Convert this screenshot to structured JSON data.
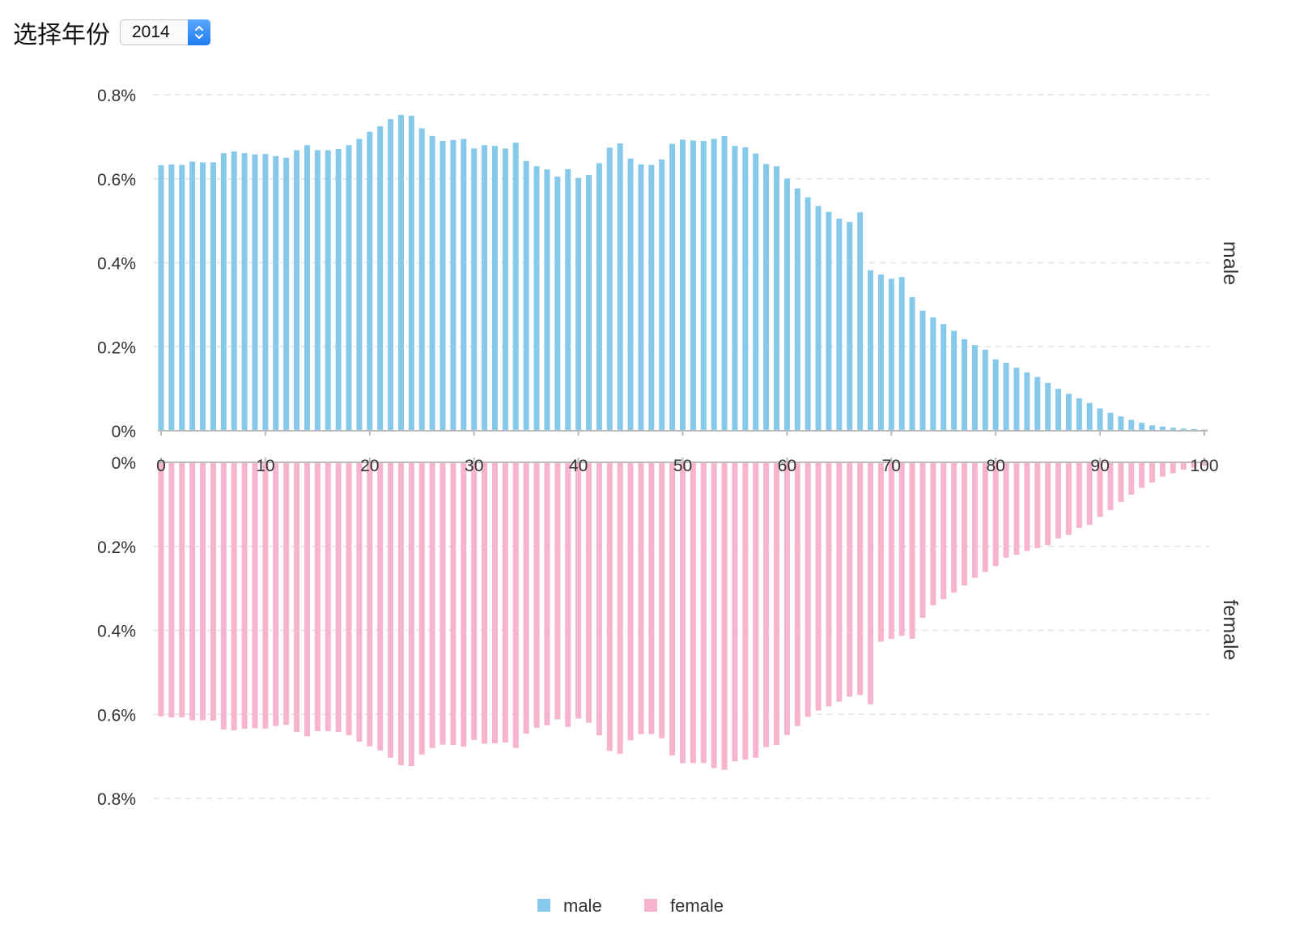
{
  "selector": {
    "label": "选择年份",
    "value": "2014"
  },
  "colors": {
    "male": "#87c9ea",
    "female": "#f6b4cf",
    "axis": "#bbbbbb",
    "grid": "#e3e3e3"
  },
  "chart_data": [
    {
      "type": "bar",
      "series_name": "male",
      "side_label": "male",
      "unit": "%",
      "x": [
        0,
        1,
        2,
        3,
        4,
        5,
        6,
        7,
        8,
        9,
        10,
        11,
        12,
        13,
        14,
        15,
        16,
        17,
        18,
        19,
        20,
        21,
        22,
        23,
        24,
        25,
        26,
        27,
        28,
        29,
        30,
        31,
        32,
        33,
        34,
        35,
        36,
        37,
        38,
        39,
        40,
        41,
        42,
        43,
        44,
        45,
        46,
        47,
        48,
        49,
        50,
        51,
        52,
        53,
        54,
        55,
        56,
        57,
        58,
        59,
        60,
        61,
        62,
        63,
        64,
        65,
        66,
        67,
        68,
        69,
        70,
        71,
        72,
        73,
        74,
        75,
        76,
        77,
        78,
        79,
        80,
        81,
        82,
        83,
        84,
        85,
        86,
        87,
        88,
        89,
        90,
        91,
        92,
        93,
        94,
        95,
        96,
        97,
        98,
        99,
        100
      ],
      "values": [
        0.632,
        0.634,
        0.633,
        0.641,
        0.639,
        0.639,
        0.661,
        0.665,
        0.661,
        0.658,
        0.659,
        0.654,
        0.65,
        0.668,
        0.68,
        0.668,
        0.668,
        0.671,
        0.68,
        0.695,
        0.712,
        0.725,
        0.742,
        0.752,
        0.75,
        0.72,
        0.702,
        0.69,
        0.692,
        0.695,
        0.672,
        0.68,
        0.678,
        0.672,
        0.686,
        0.642,
        0.63,
        0.622,
        0.605,
        0.623,
        0.602,
        0.609,
        0.637,
        0.674,
        0.684,
        0.648,
        0.634,
        0.633,
        0.646,
        0.683,
        0.693,
        0.691,
        0.69,
        0.695,
        0.702,
        0.678,
        0.675,
        0.66,
        0.635,
        0.63,
        0.6,
        0.577,
        0.556,
        0.535,
        0.521,
        0.505,
        0.497,
        0.52,
        0.382,
        0.372,
        0.362,
        0.366,
        0.318,
        0.286,
        0.27,
        0.254,
        0.238,
        0.218,
        0.204,
        0.193,
        0.17,
        0.162,
        0.15,
        0.139,
        0.128,
        0.114,
        0.1,
        0.088,
        0.077,
        0.066,
        0.053,
        0.043,
        0.034,
        0.026,
        0.019,
        0.013,
        0.01,
        0.007,
        0.005,
        0.004,
        0.003
      ],
      "ylim": [
        0,
        0.8
      ],
      "yticks": [
        "0%",
        "0.2%",
        "0.4%",
        "0.6%",
        "0.8%"
      ],
      "xticks": [
        "0",
        "10",
        "20",
        "30",
        "40",
        "50",
        "60",
        "70",
        "80",
        "90",
        "100"
      ]
    },
    {
      "type": "bar",
      "series_name": "female",
      "side_label": "female",
      "unit": "%",
      "x": [
        0,
        1,
        2,
        3,
        4,
        5,
        6,
        7,
        8,
        9,
        10,
        11,
        12,
        13,
        14,
        15,
        16,
        17,
        18,
        19,
        20,
        21,
        22,
        23,
        24,
        25,
        26,
        27,
        28,
        29,
        30,
        31,
        32,
        33,
        34,
        35,
        36,
        37,
        38,
        39,
        40,
        41,
        42,
        43,
        44,
        45,
        46,
        47,
        48,
        49,
        50,
        51,
        52,
        53,
        54,
        55,
        56,
        57,
        58,
        59,
        60,
        61,
        62,
        63,
        64,
        65,
        66,
        67,
        68,
        69,
        70,
        71,
        72,
        73,
        74,
        75,
        76,
        77,
        78,
        79,
        80,
        81,
        82,
        83,
        84,
        85,
        86,
        87,
        88,
        89,
        90,
        91,
        92,
        93,
        94,
        95,
        96,
        97,
        98,
        99,
        100
      ],
      "values": [
        0.605,
        0.607,
        0.607,
        0.614,
        0.614,
        0.615,
        0.636,
        0.638,
        0.634,
        0.633,
        0.634,
        0.628,
        0.625,
        0.642,
        0.652,
        0.64,
        0.64,
        0.642,
        0.65,
        0.665,
        0.676,
        0.686,
        0.703,
        0.721,
        0.723,
        0.696,
        0.68,
        0.672,
        0.673,
        0.677,
        0.661,
        0.67,
        0.669,
        0.667,
        0.68,
        0.646,
        0.632,
        0.626,
        0.612,
        0.63,
        0.61,
        0.62,
        0.65,
        0.687,
        0.694,
        0.662,
        0.647,
        0.647,
        0.657,
        0.698,
        0.716,
        0.716,
        0.716,
        0.728,
        0.732,
        0.712,
        0.708,
        0.703,
        0.678,
        0.673,
        0.649,
        0.628,
        0.606,
        0.591,
        0.581,
        0.57,
        0.558,
        0.554,
        0.576,
        0.427,
        0.42,
        0.413,
        0.42,
        0.37,
        0.34,
        0.326,
        0.31,
        0.293,
        0.275,
        0.261,
        0.247,
        0.227,
        0.22,
        0.211,
        0.204,
        0.197,
        0.181,
        0.173,
        0.156,
        0.149,
        0.13,
        0.114,
        0.094,
        0.077,
        0.061,
        0.048,
        0.034,
        0.026,
        0.017,
        0.013,
        0.008
      ],
      "ylim": [
        0,
        0.8
      ],
      "yticks": [
        "0%",
        "0.2%",
        "0.4%",
        "0.6%",
        "0.8%"
      ],
      "xticks": [
        "0",
        "10",
        "20",
        "30",
        "40",
        "50",
        "60",
        "70",
        "80",
        "90",
        "100"
      ]
    }
  ],
  "legend": {
    "items": [
      {
        "name": "male",
        "color": "#87c9ea"
      },
      {
        "name": "female",
        "color": "#f6b4cf"
      }
    ]
  }
}
